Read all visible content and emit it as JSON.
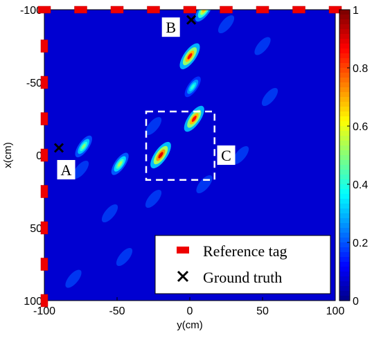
{
  "chart_data": {
    "type": "heatmap",
    "xlabel": "y(cm)",
    "ylabel": "x(cm)",
    "xlim": [
      -100,
      100
    ],
    "ylim": [
      -100,
      100
    ],
    "y_axis_reversed": true,
    "x_ticks": [
      "-100",
      "-50",
      "0",
      "50",
      "100"
    ],
    "y_ticks": [
      "-100",
      "-50",
      "0",
      "50",
      "100"
    ],
    "colorbar": {
      "range": [
        0,
        1
      ],
      "ticks": [
        "0",
        "0.2",
        "0.4",
        "0.6",
        "0.8",
        "1"
      ],
      "colormap": "jet"
    },
    "peaks": [
      {
        "y": -20,
        "x": 0,
        "value": 1.0
      },
      {
        "y": 3,
        "x": -25,
        "value": 0.95
      },
      {
        "y": 0,
        "x": -68,
        "value": 0.95
      },
      {
        "y": 10,
        "x": -100,
        "value": 0.75
      },
      {
        "y": -48,
        "x": 6,
        "value": 0.6
      },
      {
        "y": -73,
        "x": -6,
        "value": 0.55
      },
      {
        "y": 2,
        "x": -47,
        "value": 0.45
      }
    ],
    "reference_tags": {
      "top_edge_y": [
        -100,
        -75,
        -50,
        -25,
        0,
        25,
        50,
        75,
        100
      ],
      "left_edge_x": [
        -75,
        -50,
        -25,
        0,
        25,
        50,
        75,
        100
      ]
    },
    "ground_truth": [
      {
        "label": "A",
        "y": -90,
        "x": -5
      },
      {
        "label": "B",
        "y": 1,
        "x": -93
      }
    ],
    "annotations": [
      "A",
      "B",
      "C"
    ],
    "dashed_box": {
      "label": "C",
      "y_range": [
        -30,
        17
      ],
      "x_range": [
        -30,
        17
      ]
    },
    "legend": {
      "position": "bottom-right",
      "entries": [
        {
          "label": "Reference tag",
          "marker": "red-rect"
        },
        {
          "label": "Ground truth",
          "marker": "black-x"
        }
      ]
    },
    "colors": {
      "tag": "#ee0000",
      "truth": "#000000",
      "box": "#ffffff"
    }
  }
}
